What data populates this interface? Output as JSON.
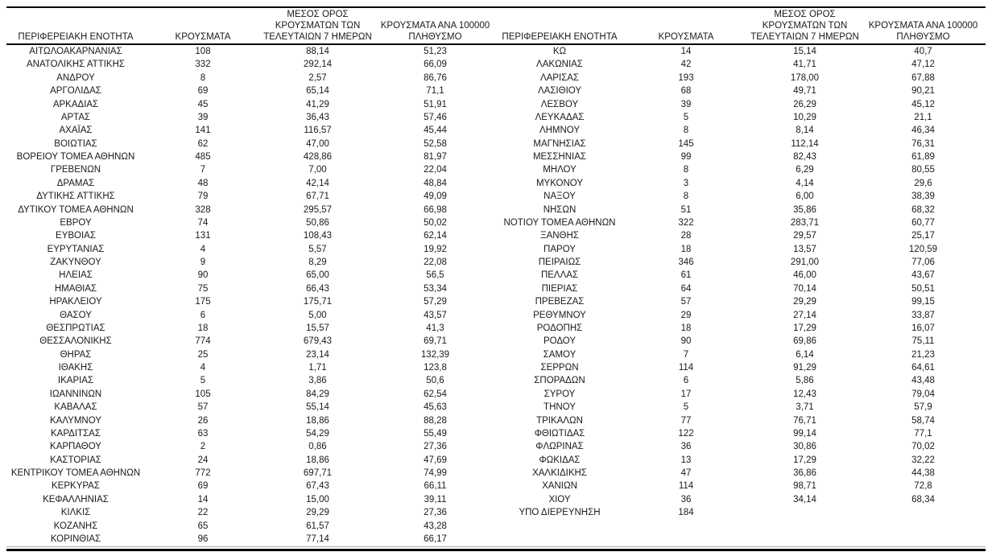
{
  "table": {
    "header": {
      "region": "ΠΕΡΙΦΕΡΕΙΑΚΗ ΕΝΟΤΗΤΑ",
      "cases": "ΚΡΟΥΣΜΑΤΑ",
      "avg7_lines": [
        "ΜΕΣΟΣ ΟΡΟΣ",
        "ΚΡΟΥΣΜΑΤΩΝ ΤΩΝ",
        "ΤΕΛΕΥΤΑΙΩΝ 7 ΗΜΕΡΩΝ"
      ],
      "per100k_lines": [
        "ΚΡΟΥΣΜΑΤΑ ΑΝΑ 100000",
        "ΠΛΗΘΥΣΜΟ"
      ]
    },
    "left_rows": [
      {
        "region": "ΑΙΤΩΛΟΑΚΑΡΝΑΝΙΑΣ",
        "cases": "108",
        "avg7": "88,14",
        "per100k": "51,23"
      },
      {
        "region": "ΑΝΑΤΟΛΙΚΗΣ ΑΤΤΙΚΗΣ",
        "cases": "332",
        "avg7": "292,14",
        "per100k": "66,09"
      },
      {
        "region": "ΑΝΔΡΟΥ",
        "cases": "8",
        "avg7": "2,57",
        "per100k": "86,76"
      },
      {
        "region": "ΑΡΓΟΛΙΔΑΣ",
        "cases": "69",
        "avg7": "65,14",
        "per100k": "71,1"
      },
      {
        "region": "ΑΡΚΑΔΙΑΣ",
        "cases": "45",
        "avg7": "41,29",
        "per100k": "51,91"
      },
      {
        "region": "ΑΡΤΑΣ",
        "cases": "39",
        "avg7": "36,43",
        "per100k": "57,46"
      },
      {
        "region": "ΑΧΑΪΑΣ",
        "cases": "141",
        "avg7": "116,57",
        "per100k": "45,44"
      },
      {
        "region": "ΒΟΙΩΤΙΑΣ",
        "cases": "62",
        "avg7": "47,00",
        "per100k": "52,58"
      },
      {
        "region": "ΒΟΡΕΙΟΥ ΤΟΜΕΑ ΑΘΗΝΩΝ",
        "cases": "485",
        "avg7": "428,86",
        "per100k": "81,97"
      },
      {
        "region": "ΓΡΕΒΕΝΩΝ",
        "cases": "7",
        "avg7": "7,00",
        "per100k": "22,04"
      },
      {
        "region": "ΔΡΑΜΑΣ",
        "cases": "48",
        "avg7": "42,14",
        "per100k": "48,84"
      },
      {
        "region": "ΔΥΤΙΚΗΣ ΑΤΤΙΚΗΣ",
        "cases": "79",
        "avg7": "67,71",
        "per100k": "49,09"
      },
      {
        "region": "ΔΥΤΙΚΟΥ ΤΟΜΕΑ ΑΘΗΝΩΝ",
        "cases": "328",
        "avg7": "295,57",
        "per100k": "66,98"
      },
      {
        "region": "ΕΒΡΟΥ",
        "cases": "74",
        "avg7": "50,86",
        "per100k": "50,02"
      },
      {
        "region": "ΕΥΒΟΙΑΣ",
        "cases": "131",
        "avg7": "108,43",
        "per100k": "62,14"
      },
      {
        "region": "ΕΥΡΥΤΑΝΙΑΣ",
        "cases": "4",
        "avg7": "5,57",
        "per100k": "19,92"
      },
      {
        "region": "ΖΑΚΥΝΘΟΥ",
        "cases": "9",
        "avg7": "8,29",
        "per100k": "22,08"
      },
      {
        "region": "ΗΛΕΙΑΣ",
        "cases": "90",
        "avg7": "65,00",
        "per100k": "56,5"
      },
      {
        "region": "ΗΜΑΘΙΑΣ",
        "cases": "75",
        "avg7": "66,43",
        "per100k": "53,34"
      },
      {
        "region": "ΗΡΑΚΛΕΙΟΥ",
        "cases": "175",
        "avg7": "175,71",
        "per100k": "57,29"
      },
      {
        "region": "ΘΑΣΟΥ",
        "cases": "6",
        "avg7": "5,00",
        "per100k": "43,57"
      },
      {
        "region": "ΘΕΣΠΡΩΤΙΑΣ",
        "cases": "18",
        "avg7": "15,57",
        "per100k": "41,3"
      },
      {
        "region": "ΘΕΣΣΑΛΟΝΙΚΗΣ",
        "cases": "774",
        "avg7": "679,43",
        "per100k": "69,71"
      },
      {
        "region": "ΘΗΡΑΣ",
        "cases": "25",
        "avg7": "23,14",
        "per100k": "132,39"
      },
      {
        "region": "ΙΘΑΚΗΣ",
        "cases": "4",
        "avg7": "1,71",
        "per100k": "123,8"
      },
      {
        "region": "ΙΚΑΡΙΑΣ",
        "cases": "5",
        "avg7": "3,86",
        "per100k": "50,6"
      },
      {
        "region": "ΙΩΑΝΝΙΝΩΝ",
        "cases": "105",
        "avg7": "84,29",
        "per100k": "62,54"
      },
      {
        "region": "ΚΑΒΑΛΑΣ",
        "cases": "57",
        "avg7": "55,14",
        "per100k": "45,63"
      },
      {
        "region": "ΚΑΛΥΜΝΟΥ",
        "cases": "26",
        "avg7": "18,86",
        "per100k": "88,28"
      },
      {
        "region": "ΚΑΡΔΙΤΣΑΣ",
        "cases": "63",
        "avg7": "54,29",
        "per100k": "55,49"
      },
      {
        "region": "ΚΑΡΠΑΘΟΥ",
        "cases": "2",
        "avg7": "0,86",
        "per100k": "27,36"
      },
      {
        "region": "ΚΑΣΤΟΡΙΑΣ",
        "cases": "24",
        "avg7": "18,86",
        "per100k": "47,69"
      },
      {
        "region": "ΚΕΝΤΡΙΚΟΥ ΤΟΜΕΑ ΑΘΗΝΩΝ",
        "cases": "772",
        "avg7": "697,71",
        "per100k": "74,99"
      },
      {
        "region": "ΚΕΡΚΥΡΑΣ",
        "cases": "69",
        "avg7": "67,43",
        "per100k": "66,11"
      },
      {
        "region": "ΚΕΦΑΛΛΗΝΙΑΣ",
        "cases": "14",
        "avg7": "15,00",
        "per100k": "39,11"
      },
      {
        "region": "ΚΙΛΚΙΣ",
        "cases": "22",
        "avg7": "29,29",
        "per100k": "27,36"
      },
      {
        "region": "ΚΟΖΑΝΗΣ",
        "cases": "65",
        "avg7": "61,57",
        "per100k": "43,28"
      },
      {
        "region": "ΚΟΡΙΝΘΙΑΣ",
        "cases": "96",
        "avg7": "77,14",
        "per100k": "66,17"
      }
    ],
    "right_rows": [
      {
        "region": "ΚΩ",
        "cases": "14",
        "avg7": "15,14",
        "per100k": "40,7"
      },
      {
        "region": "ΛΑΚΩΝΙΑΣ",
        "cases": "42",
        "avg7": "41,71",
        "per100k": "47,12"
      },
      {
        "region": "ΛΑΡΙΣΑΣ",
        "cases": "193",
        "avg7": "178,00",
        "per100k": "67,88"
      },
      {
        "region": "ΛΑΣΙΘΙΟΥ",
        "cases": "68",
        "avg7": "49,71",
        "per100k": "90,21"
      },
      {
        "region": "ΛΕΣΒΟΥ",
        "cases": "39",
        "avg7": "26,29",
        "per100k": "45,12"
      },
      {
        "region": "ΛΕΥΚΑΔΑΣ",
        "cases": "5",
        "avg7": "10,29",
        "per100k": "21,1"
      },
      {
        "region": "ΛΗΜΝΟΥ",
        "cases": "8",
        "avg7": "8,14",
        "per100k": "46,34"
      },
      {
        "region": "ΜΑΓΝΗΣΙΑΣ",
        "cases": "145",
        "avg7": "112,14",
        "per100k": "76,31"
      },
      {
        "region": "ΜΕΣΣΗΝΙΑΣ",
        "cases": "99",
        "avg7": "82,43",
        "per100k": "61,89"
      },
      {
        "region": "ΜΗΛΟΥ",
        "cases": "8",
        "avg7": "6,29",
        "per100k": "80,55"
      },
      {
        "region": "ΜΥΚΟΝΟΥ",
        "cases": "3",
        "avg7": "4,14",
        "per100k": "29,6"
      },
      {
        "region": "ΝΑΞΟΥ",
        "cases": "8",
        "avg7": "6,00",
        "per100k": "38,39"
      },
      {
        "region": "ΝΗΣΩΝ",
        "cases": "51",
        "avg7": "35,86",
        "per100k": "68,32"
      },
      {
        "region": "ΝΟΤΙΟΥ ΤΟΜΕΑ ΑΘΗΝΩΝ",
        "cases": "322",
        "avg7": "283,71",
        "per100k": "60,77"
      },
      {
        "region": "ΞΑΝΘΗΣ",
        "cases": "28",
        "avg7": "29,57",
        "per100k": "25,17"
      },
      {
        "region": "ΠΑΡΟΥ",
        "cases": "18",
        "avg7": "13,57",
        "per100k": "120,59"
      },
      {
        "region": "ΠΕΙΡΑΙΩΣ",
        "cases": "346",
        "avg7": "291,00",
        "per100k": "77,06"
      },
      {
        "region": "ΠΕΛΛΑΣ",
        "cases": "61",
        "avg7": "46,00",
        "per100k": "43,67"
      },
      {
        "region": "ΠΙΕΡΙΑΣ",
        "cases": "64",
        "avg7": "70,14",
        "per100k": "50,51"
      },
      {
        "region": "ΠΡΕΒΕΖΑΣ",
        "cases": "57",
        "avg7": "29,29",
        "per100k": "99,15"
      },
      {
        "region": "ΡΕΘΥΜΝΟΥ",
        "cases": "29",
        "avg7": "27,14",
        "per100k": "33,87"
      },
      {
        "region": "ΡΟΔΟΠΗΣ",
        "cases": "18",
        "avg7": "17,29",
        "per100k": "16,07"
      },
      {
        "region": "ΡΟΔΟΥ",
        "cases": "90",
        "avg7": "69,86",
        "per100k": "75,11"
      },
      {
        "region": "ΣΑΜΟΥ",
        "cases": "7",
        "avg7": "6,14",
        "per100k": "21,23"
      },
      {
        "region": "ΣΕΡΡΩΝ",
        "cases": "114",
        "avg7": "91,29",
        "per100k": "64,61"
      },
      {
        "region": "ΣΠΟΡΑΔΩΝ",
        "cases": "6",
        "avg7": "5,86",
        "per100k": "43,48"
      },
      {
        "region": "ΣΥΡΟΥ",
        "cases": "17",
        "avg7": "12,43",
        "per100k": "79,04"
      },
      {
        "region": "ΤΗΝΟΥ",
        "cases": "5",
        "avg7": "3,71",
        "per100k": "57,9"
      },
      {
        "region": "ΤΡΙΚΑΛΩΝ",
        "cases": "77",
        "avg7": "76,71",
        "per100k": "58,74"
      },
      {
        "region": "ΦΘΙΩΤΙΔΑΣ",
        "cases": "122",
        "avg7": "99,14",
        "per100k": "77,1"
      },
      {
        "region": "ΦΛΩΡΙΝΑΣ",
        "cases": "36",
        "avg7": "30,86",
        "per100k": "70,02"
      },
      {
        "region": "ΦΩΚΙΔΑΣ",
        "cases": "13",
        "avg7": "17,29",
        "per100k": "32,22"
      },
      {
        "region": "ΧΑΛΚΙΔΙΚΗΣ",
        "cases": "47",
        "avg7": "36,86",
        "per100k": "44,38"
      },
      {
        "region": "ΧΑΝΙΩΝ",
        "cases": "114",
        "avg7": "98,71",
        "per100k": "72,8"
      },
      {
        "region": "ΧΙΟΥ",
        "cases": "36",
        "avg7": "34,14",
        "per100k": "68,34"
      },
      {
        "region": "ΥΠΟ ΔΙΕΡΕΥΝΗΣΗ",
        "cases": "184",
        "avg7": "",
        "per100k": ""
      }
    ]
  },
  "colors": {
    "text": "#1a1a1a",
    "rule": "#000000",
    "thin_rule": "#a8a8a8",
    "background": "#ffffff"
  }
}
